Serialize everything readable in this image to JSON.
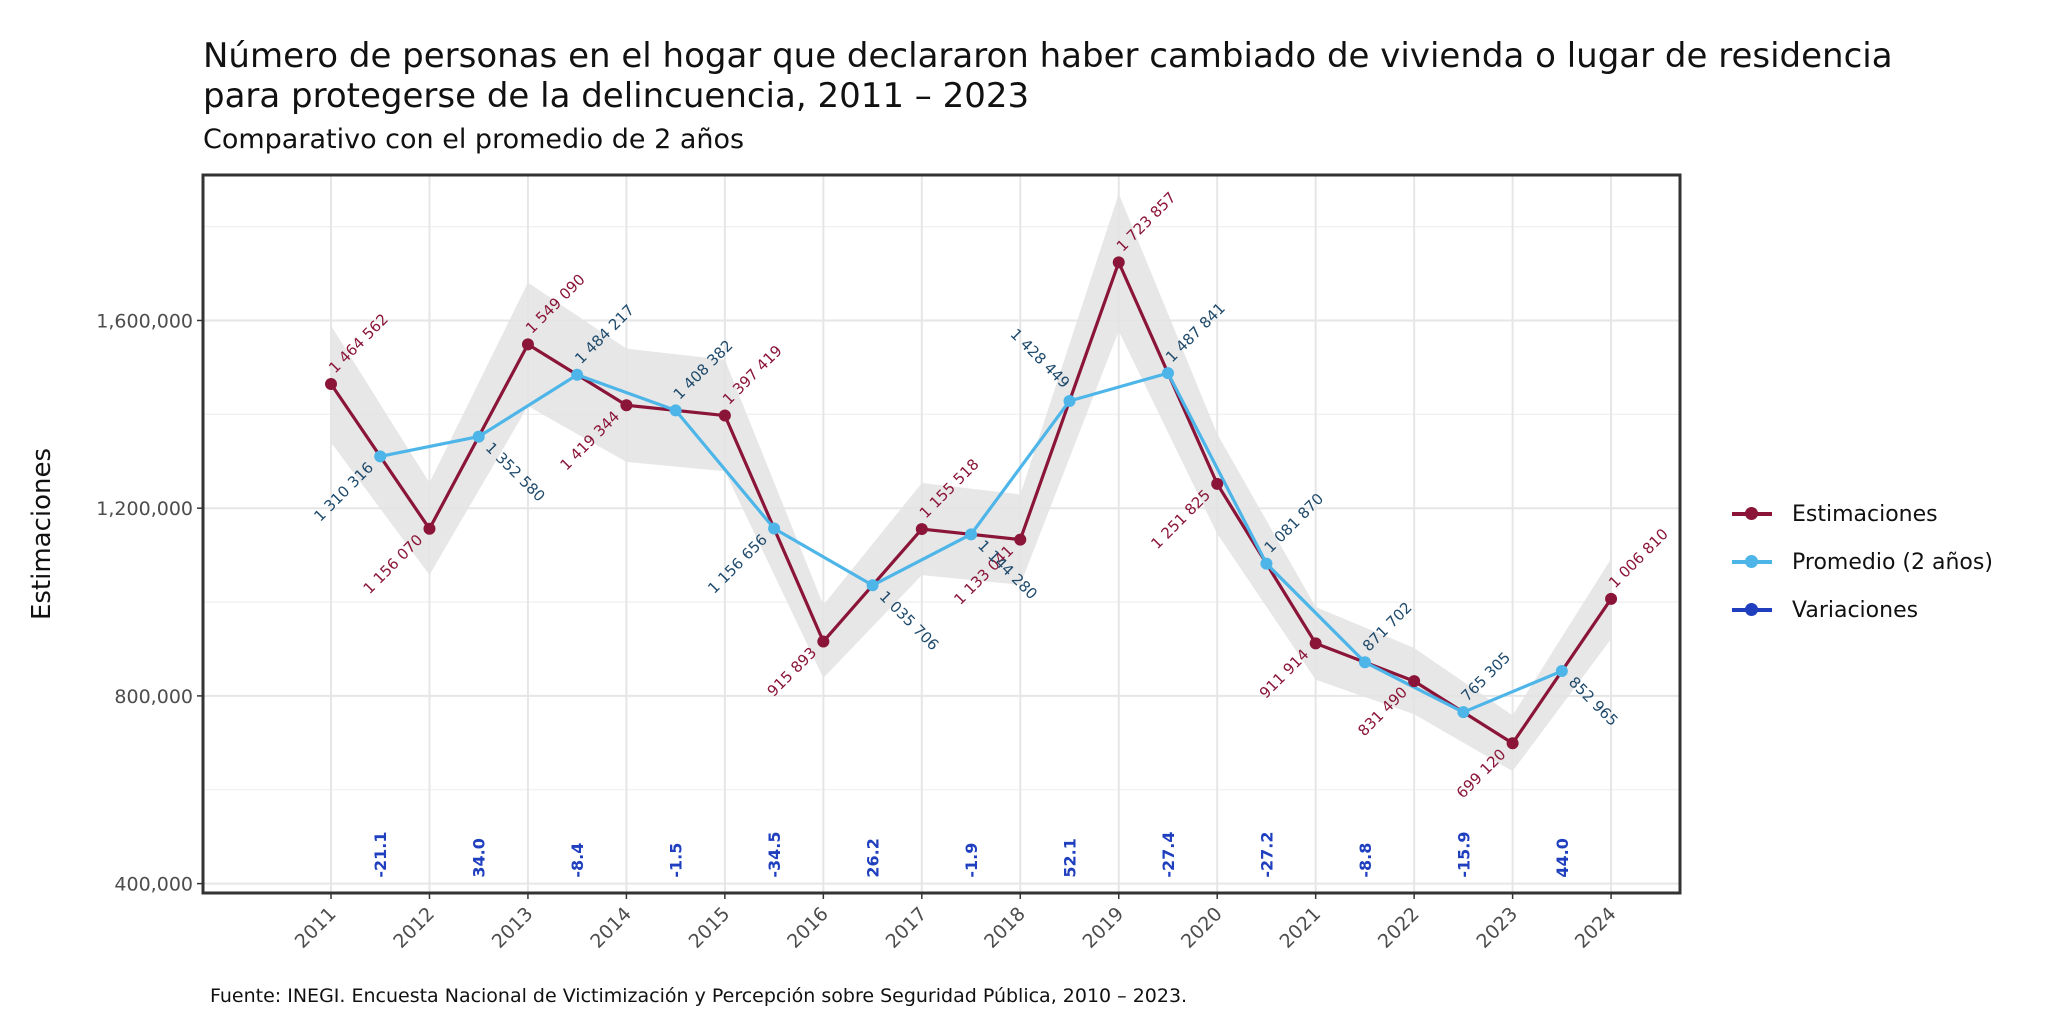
{
  "title": "Número de personas en el hogar que declararon haber cambiado de vivienda o lugar de residencia para protegerse de la delincuencia, 2011 – 2023",
  "subtitle": "Comparativo con el promedio de 2 años",
  "caption": "Fuente: INEGI. Encuesta Nacional de Victimización y Percepción sobre Seguridad Pública, 2010 – 2023.",
  "colors": {
    "estimaciones": "#8a1538",
    "promedio": "#4db5e8",
    "variaciones": "#1f3fbf",
    "band": "#e3e3e3"
  },
  "chart_data": {
    "type": "line",
    "ylabel": "Estimaciones",
    "xlabel": "",
    "ylim": [
      380000,
      1910000
    ],
    "y_ticks": [
      400000,
      800000,
      1200000,
      1600000
    ],
    "y_tick_labels": [
      "400,000",
      "800,000",
      "1,200,000",
      "1,600,000"
    ],
    "x_ticks": [
      2011,
      2012,
      2013,
      2014,
      2015,
      2016,
      2017,
      2018,
      2019,
      2020,
      2021,
      2022,
      2023,
      2024
    ],
    "grid": true,
    "legend_position": "right",
    "legend": [
      "Estimaciones",
      "Promedio (2 años)",
      "Variaciones"
    ],
    "series": [
      {
        "name": "Estimaciones",
        "x": [
          2011,
          2012,
          2013,
          2014,
          2015,
          2016,
          2017,
          2018,
          2019,
          2020,
          2021,
          2022,
          2023,
          2024
        ],
        "values": [
          1464562,
          1156070,
          1549090,
          1419344,
          1397419,
          915893,
          1155518,
          1133041,
          1723857,
          1251825,
          911914,
          831490,
          699120,
          1006810
        ],
        "labels": [
          "1 464 562",
          "1 156 070",
          "1 549 090",
          "1 419 344",
          "1 397 419",
          "915 893",
          "1 155 518",
          "1 133 041",
          "1 723 857",
          "1 251 825",
          "911 914",
          "831 490",
          "699 120",
          "1 006 810"
        ]
      },
      {
        "name": "Promedio (2 años)",
        "x": [
          2011.5,
          2012.5,
          2013.5,
          2014.5,
          2015.5,
          2016.5,
          2017.5,
          2018.5,
          2019.5,
          2020.5,
          2021.5,
          2022.5,
          2023.5
        ],
        "values": [
          1310316,
          1352580,
          1484217,
          1408382,
          1156656,
          1035706,
          1144280,
          1428449,
          1487841,
          1081870,
          871702,
          765305,
          852965
        ],
        "labels": [
          "1 310 316",
          "1 352 580",
          "1 484 217",
          "1 408 382",
          "1 156 656",
          "1 035 706",
          "1 144 280",
          "1 428 449",
          "1 487 841",
          "1 081 870",
          "871 702",
          "765 305",
          "852 965"
        ]
      },
      {
        "name": "Variaciones",
        "x": [
          2011.5,
          2012.5,
          2013.5,
          2014.5,
          2015.5,
          2016.5,
          2017.5,
          2018.5,
          2019.5,
          2020.5,
          2021.5,
          2022.5,
          2023.5
        ],
        "values": [
          -21.1,
          34.0,
          -8.4,
          -1.5,
          -34.5,
          26.2,
          -1.9,
          52.1,
          -27.4,
          -27.2,
          -8.8,
          -15.9,
          44.0
        ],
        "labels": [
          "-21.1",
          "34.0",
          "-8.4",
          "-1.5",
          "-34.5",
          "26.2",
          "-1.9",
          "52.1",
          "-27.4",
          "-27.2",
          "-8.8",
          "-15.9",
          "44.0"
        ]
      }
    ]
  }
}
